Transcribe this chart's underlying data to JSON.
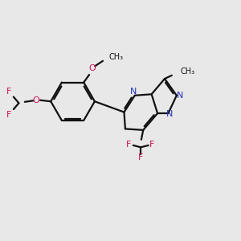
{
  "bg_color": "#e8e8e8",
  "bond_color": "#111111",
  "red_color": "#cc1155",
  "blue_color": "#2233bb",
  "line_width": 1.6,
  "fig_size": [
    3.0,
    3.0
  ],
  "dpi": 100,
  "xlim": [
    0,
    10
  ],
  "ylim": [
    0,
    10
  ],
  "font_size_atom": 8.0,
  "font_size_group": 7.0
}
